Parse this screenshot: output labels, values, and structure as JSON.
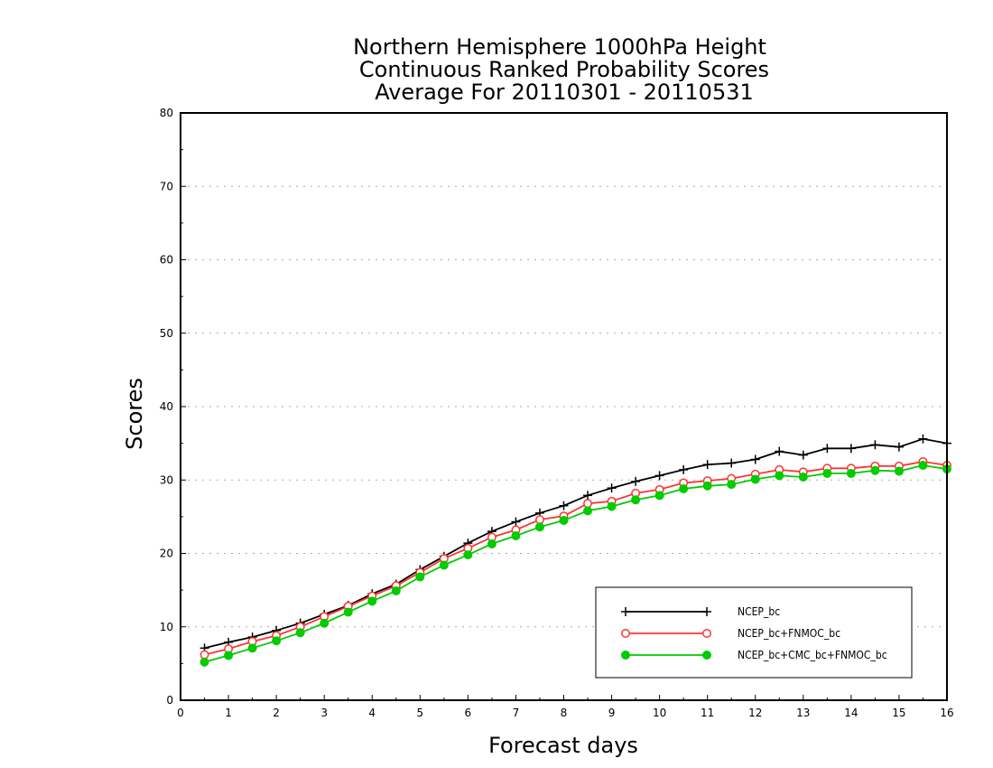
{
  "chart_data": {
    "type": "line",
    "title_lines": [
      "Northern Hemisphere 1000hPa Height",
      "Continuous Ranked Probability Scores",
      "Average For 20110301 - 20110531"
    ],
    "xlabel": "Forecast days",
    "ylabel": "Scores",
    "xlim": [
      0,
      16
    ],
    "ylim": [
      0,
      80
    ],
    "xticks": [
      0,
      1,
      2,
      3,
      4,
      5,
      6,
      7,
      8,
      9,
      10,
      11,
      12,
      13,
      14,
      15,
      16
    ],
    "yticks": [
      0,
      10,
      20,
      30,
      40,
      50,
      60,
      70,
      80
    ],
    "grid": "horizontal dotted",
    "legend_position": "bottom-right",
    "x": [
      0.5,
      1,
      1.5,
      2,
      2.5,
      3,
      3.5,
      4,
      4.5,
      5,
      5.5,
      6,
      6.5,
      7,
      7.5,
      8,
      8.5,
      9,
      9.5,
      10,
      10.5,
      11,
      11.5,
      12,
      12.5,
      13,
      13.5,
      14,
      14.5,
      15,
      15.5,
      16
    ],
    "series": [
      {
        "name": "NCEP_bc",
        "color": "#000000",
        "marker": "plus",
        "values": [
          7.1,
          7.9,
          8.6,
          9.5,
          10.5,
          11.7,
          12.9,
          14.5,
          15.8,
          17.8,
          19.6,
          21.4,
          23.0,
          24.3,
          25.5,
          26.5,
          27.9,
          28.9,
          29.8,
          30.6,
          31.4,
          32.1,
          32.3,
          32.8,
          33.9,
          33.4,
          34.3,
          34.3,
          34.8,
          34.5,
          35.6,
          35.0
        ]
      },
      {
        "name": "NCEP_bc+FNMOC_bc",
        "color": "#ff3333",
        "marker": "open-circle",
        "values": [
          6.2,
          7.0,
          8.0,
          8.8,
          10.0,
          11.4,
          12.8,
          14.2,
          15.6,
          17.4,
          19.3,
          20.7,
          22.2,
          23.2,
          24.6,
          25.1,
          26.8,
          27.1,
          28.2,
          28.7,
          29.6,
          29.9,
          30.2,
          30.8,
          31.4,
          31.1,
          31.6,
          31.6,
          31.9,
          31.9,
          32.5,
          32.0
        ]
      },
      {
        "name": "NCEP_bc+CMC_bc+FNMOC_bc",
        "color": "#00cc00",
        "marker": "filled-circle",
        "values": [
          5.2,
          6.1,
          7.1,
          8.1,
          9.2,
          10.5,
          12.0,
          13.5,
          14.9,
          16.8,
          18.4,
          19.8,
          21.3,
          22.4,
          23.6,
          24.5,
          25.8,
          26.4,
          27.3,
          27.9,
          28.8,
          29.2,
          29.4,
          30.1,
          30.6,
          30.4,
          30.9,
          30.9,
          31.3,
          31.2,
          32.0,
          31.5
        ]
      }
    ]
  }
}
